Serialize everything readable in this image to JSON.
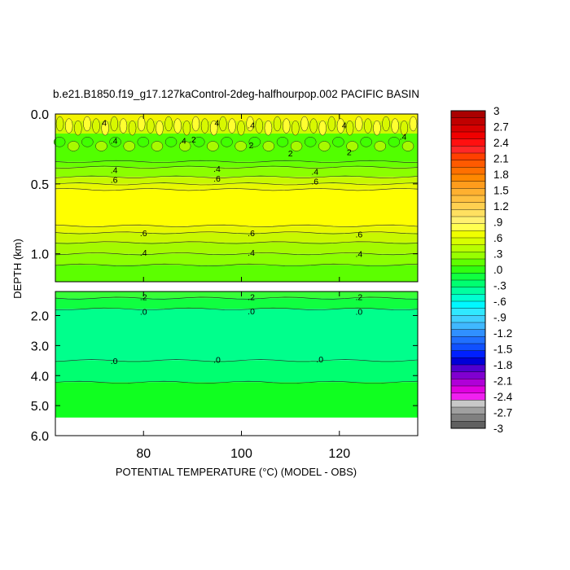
{
  "chart_data": {
    "type": "contour",
    "title": "b.e21.B1850.f19_g17.127kaControl-2deg-halfhourpop.002 PACIFIC BASIN",
    "xlabel": "POTENTIAL TEMPERATURE (°C) (MODEL - OBS)",
    "ylabel": "DEPTH (km)",
    "xlim": [
      62,
      136
    ],
    "x_ticks": [
      "80",
      "100",
      "120"
    ],
    "x_tick_values": [
      80,
      100,
      120
    ],
    "panels": [
      {
        "name": "upper",
        "ylim": [
          0.0,
          1.2
        ],
        "y_ticks": [
          "0.0",
          "0.5",
          "1.0"
        ],
        "y_tick_values": [
          0.0,
          0.5,
          1.0
        ],
        "bands": [
          {
            "from": 0.0,
            "to": 0.05,
            "value": 0.5,
            "color": "#f4f400"
          },
          {
            "from": 0.05,
            "to": 0.14,
            "value": 0.4,
            "color": "#cff800"
          },
          {
            "from": 0.14,
            "to": 0.34,
            "value": 0.3,
            "color": "#52ff00"
          },
          {
            "from": 0.34,
            "to": 0.38,
            "value": 0.3,
            "color": "#68ff00"
          },
          {
            "from": 0.38,
            "to": 0.45,
            "value": 0.4,
            "color": "#8bff00"
          },
          {
            "from": 0.45,
            "to": 0.5,
            "value": 0.5,
            "color": "#c8f800"
          },
          {
            "from": 0.5,
            "to": 0.54,
            "value": 0.6,
            "color": "#e8f800"
          },
          {
            "from": 0.54,
            "to": 0.8,
            "value": 0.7,
            "color": "#ffff00"
          },
          {
            "from": 0.8,
            "to": 0.85,
            "value": 0.6,
            "color": "#e8f800"
          },
          {
            "from": 0.85,
            "to": 0.92,
            "value": 0.5,
            "color": "#c8f800"
          },
          {
            "from": 0.92,
            "to": 1.0,
            "value": 0.4,
            "color": "#a4fa00"
          },
          {
            "from": 1.0,
            "to": 1.08,
            "value": 0.3,
            "color": "#8bff00"
          },
          {
            "from": 1.08,
            "to": 1.2,
            "value": 0.3,
            "color": "#5cff00"
          }
        ],
        "contours": [
          0.34,
          0.38,
          0.45,
          0.5,
          0.54,
          0.8,
          0.85,
          0.92,
          1.0,
          1.08
        ],
        "labels": [
          {
            "x": 72,
            "y": 0.06,
            "text": "4"
          },
          {
            "x": 74,
            "y": 0.19,
            "text": ".4"
          },
          {
            "x": 88,
            "y": 0.19,
            "text": ".4"
          },
          {
            "x": 90,
            "y": 0.18,
            "text": ".2"
          },
          {
            "x": 95,
            "y": 0.06,
            "text": "4"
          },
          {
            "x": 102,
            "y": 0.08,
            "text": ".4"
          },
          {
            "x": 102,
            "y": 0.22,
            "text": "2"
          },
          {
            "x": 110,
            "y": 0.28,
            "text": "2"
          },
          {
            "x": 121,
            "y": 0.08,
            "text": "4"
          },
          {
            "x": 122,
            "y": 0.27,
            "text": "2"
          },
          {
            "x": 133,
            "y": 0.16,
            "text": ".4"
          },
          {
            "x": 74,
            "y": 0.4,
            "text": ".4"
          },
          {
            "x": 74,
            "y": 0.47,
            "text": ".6"
          },
          {
            "x": 95,
            "y": 0.39,
            "text": ".4"
          },
          {
            "x": 95,
            "y": 0.46,
            "text": ".6"
          },
          {
            "x": 115,
            "y": 0.41,
            "text": ".4"
          },
          {
            "x": 115,
            "y": 0.48,
            "text": ".6"
          },
          {
            "x": 80,
            "y": 0.85,
            "text": ".6"
          },
          {
            "x": 102,
            "y": 0.85,
            "text": ".6"
          },
          {
            "x": 124,
            "y": 0.86,
            "text": ".6"
          },
          {
            "x": 80,
            "y": 0.99,
            "text": ".4"
          },
          {
            "x": 102,
            "y": 0.99,
            "text": ".4"
          },
          {
            "x": 124,
            "y": 1.0,
            "text": ".4"
          }
        ]
      },
      {
        "name": "lower",
        "ylim": [
          1.2,
          6.0
        ],
        "y_ticks": [
          "2.0",
          "3.0",
          "4.0",
          "5.0",
          "6.0"
        ],
        "y_tick_values": [
          2.0,
          3.0,
          4.0,
          5.0,
          6.0
        ],
        "data_bottom": 5.4,
        "bands": [
          {
            "from": 1.2,
            "to": 1.42,
            "value": 0.2,
            "color": "#38ff38"
          },
          {
            "from": 1.42,
            "to": 1.78,
            "value": 0.1,
            "color": "#10ff40"
          },
          {
            "from": 1.78,
            "to": 3.5,
            "value": 0.0,
            "color": "#00ff8c"
          },
          {
            "from": 3.5,
            "to": 4.22,
            "value": 0.0,
            "color": "#00ff70"
          },
          {
            "from": 4.22,
            "to": 5.4,
            "value": 0.1,
            "color": "#10ff20"
          }
        ],
        "contours": [
          1.42,
          1.78,
          3.5,
          4.22
        ],
        "labels": [
          {
            "x": 80,
            "y": 1.38,
            "text": ".2"
          },
          {
            "x": 102,
            "y": 1.37,
            "text": ".2"
          },
          {
            "x": 124,
            "y": 1.38,
            "text": ".2"
          },
          {
            "x": 80,
            "y": 1.87,
            "text": ".0"
          },
          {
            "x": 102,
            "y": 1.85,
            "text": ".0"
          },
          {
            "x": 124,
            "y": 1.86,
            "text": ".0"
          },
          {
            "x": 74,
            "y": 3.5,
            "text": ".0"
          },
          {
            "x": 95,
            "y": 3.47,
            "text": ".0"
          },
          {
            "x": 116,
            "y": 3.45,
            "text": ".0"
          }
        ]
      }
    ],
    "colorbar": {
      "labels": [
        "3",
        "2.7",
        "2.4",
        "2.1",
        "1.8",
        "1.5",
        "1.2",
        ".9",
        ".6",
        ".3",
        ".0",
        "-.3",
        "-.6",
        "-.9",
        "-1.2",
        "-1.5",
        "-1.8",
        "-2.1",
        "-2.4",
        "-2.7",
        "-3"
      ],
      "colors": [
        "#aa0000",
        "#c00000",
        "#d80000",
        "#f00000",
        "#ff1010",
        "#ff2828",
        "#ff4000",
        "#ff5a00",
        "#ff7000",
        "#ff8800",
        "#ff9c1c",
        "#ffb030",
        "#ffc040",
        "#ffd050",
        "#ffe060",
        "#fff070",
        "#ffff50",
        "#f0ff00",
        "#d8ff00",
        "#b8ff00",
        "#98ff00",
        "#60ff00",
        "#30ff10",
        "#10ff40",
        "#00ff70",
        "#00ffa0",
        "#00ffd0",
        "#00f8ff",
        "#30e8ff",
        "#40d0ff",
        "#40b8ff",
        "#3090ff",
        "#2070ff",
        "#1050ff",
        "#0020ff",
        "#0000d8",
        "#5000d0",
        "#8000d0",
        "#b000d8",
        "#e000e0",
        "#f020f0",
        "#c8c8c8",
        "#a0a0a0",
        "#808080",
        "#606060"
      ]
    }
  }
}
